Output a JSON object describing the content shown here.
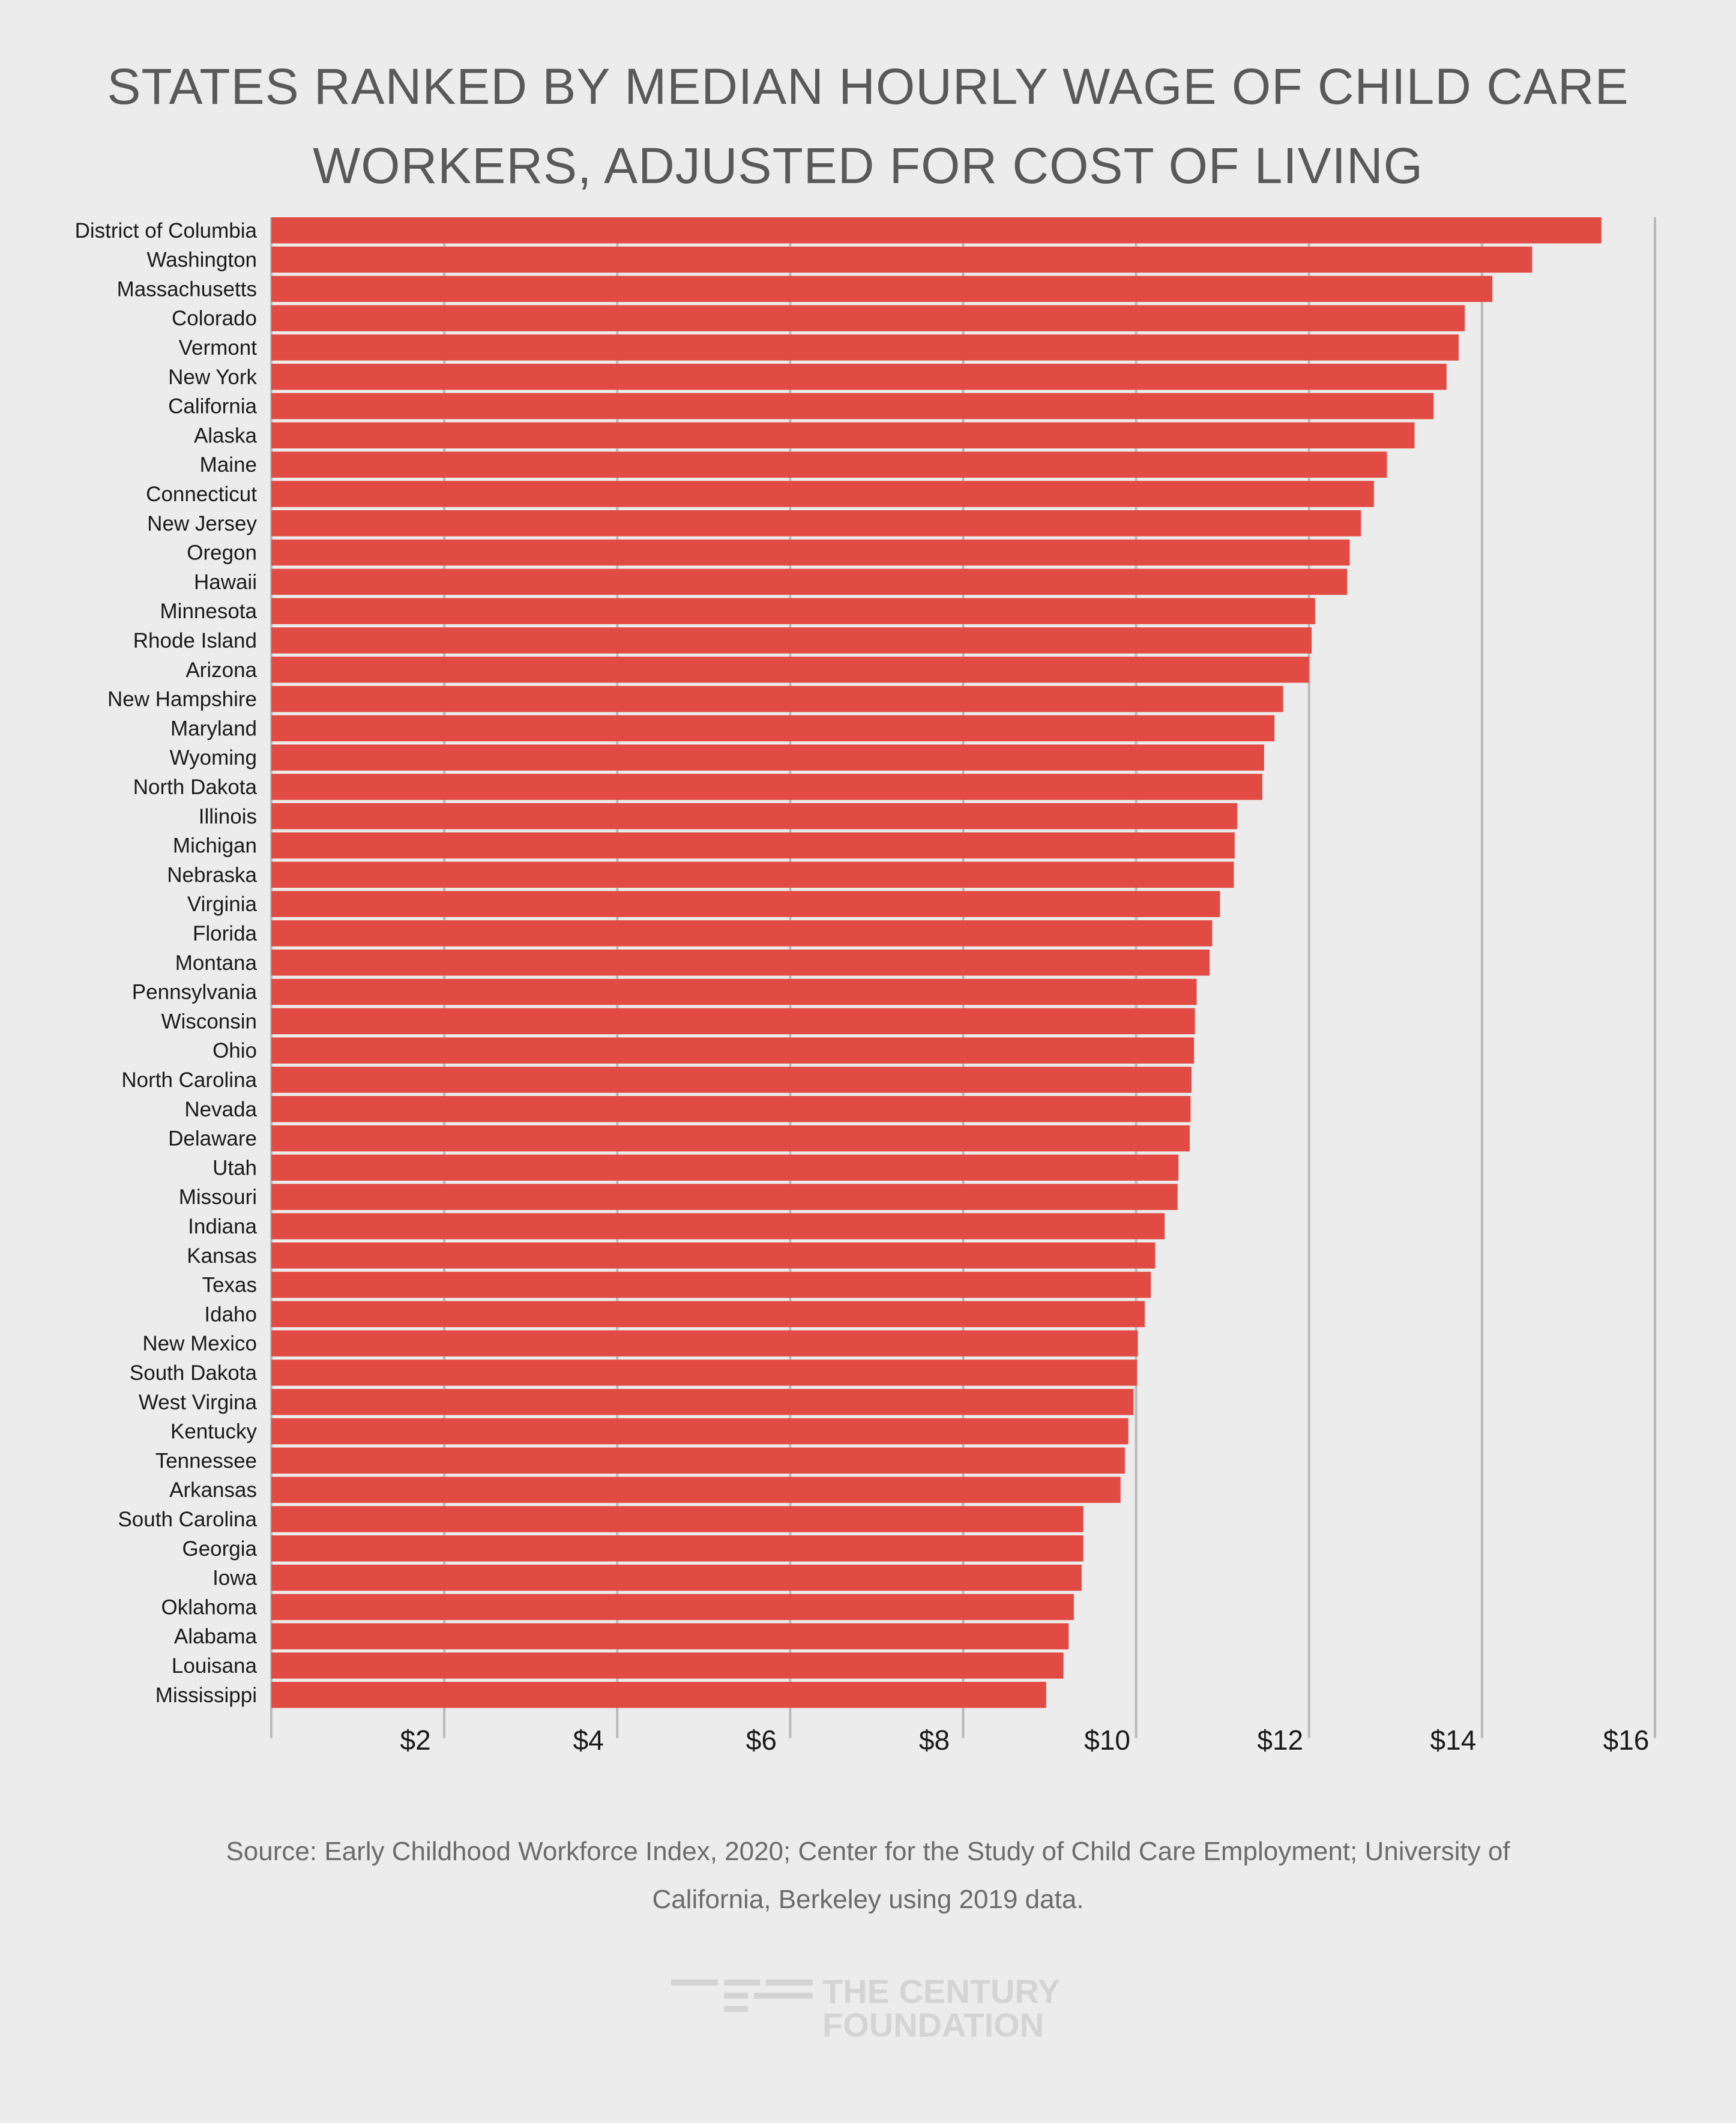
{
  "title": {
    "line1": "STATES RANKED BY MEDIAN HOURLY WAGE OF CHILD CARE",
    "line2": "WORKERS, ADJUSTED FOR COST OF LIVING"
  },
  "source": {
    "line1": "Source: Early Childhood Workforce Index, 2020; Center for the Study of Child Care Employment; University of",
    "line2": "California, Berkeley using 2019 data."
  },
  "logo": {
    "line1": "THE CENTURY",
    "line2": "FOUNDATION",
    "icon": "century-foundation-logo-icon"
  },
  "colors": {
    "bar": "#e24b43",
    "background": "#ebeceb",
    "grid": "#b9b9b9",
    "text": "#1a1a1a"
  },
  "chart_data": {
    "type": "bar",
    "orientation": "horizontal",
    "title": "STATES RANKED BY MEDIAN HOURLY WAGE OF CHILD CARE WORKERS, ADJUSTED FOR COST OF LIVING",
    "xlim": [
      0,
      16
    ],
    "xticks": [
      2,
      4,
      6,
      8,
      10,
      12,
      14,
      16
    ],
    "xtick_labels": [
      "$2",
      "$4",
      "$6",
      "$8",
      "$10",
      "$12",
      "$14",
      "$16"
    ],
    "grid": true,
    "categories": [
      "District of Columbia",
      "Washington",
      "Massachusetts",
      "Colorado",
      "Vermont",
      "New York",
      "California",
      "Alaska",
      "Maine",
      "Connecticut",
      "New Jersey",
      "Oregon",
      "Hawaii",
      "Minnesota",
      "Rhode Island",
      "Arizona",
      "New Hampshire",
      "Maryland",
      "Wyoming",
      "North Dakota",
      "Illinois",
      "Michigan",
      "Nebraska",
      "Virginia",
      "Florida",
      "Montana",
      "Pennsylvania",
      "Wisconsin",
      "Ohio",
      "North Carolina",
      "Nevada",
      "Delaware",
      "Utah",
      "Missouri",
      "Indiana",
      "Kansas",
      "Texas",
      "Idaho",
      "New Mexico",
      "South Dakota",
      "West Virgina",
      "Kentucky",
      "Tennessee",
      "Arkansas",
      "South Carolina",
      "Georgia",
      "Iowa",
      "Oklahoma",
      "Alabama",
      "Louisana",
      "Mississippi"
    ],
    "values": [
      15.38,
      14.58,
      14.12,
      13.8,
      13.73,
      13.59,
      13.44,
      13.22,
      12.9,
      12.75,
      12.6,
      12.47,
      12.44,
      12.07,
      12.03,
      12.0,
      11.7,
      11.6,
      11.48,
      11.46,
      11.17,
      11.14,
      11.13,
      10.97,
      10.88,
      10.85,
      10.7,
      10.68,
      10.67,
      10.64,
      10.63,
      10.62,
      10.49,
      10.48,
      10.33,
      10.22,
      10.17,
      10.1,
      10.02,
      10.01,
      9.97,
      9.91,
      9.87,
      9.82,
      9.39,
      9.39,
      9.37,
      9.28,
      9.22,
      9.16,
      8.96
    ]
  }
}
